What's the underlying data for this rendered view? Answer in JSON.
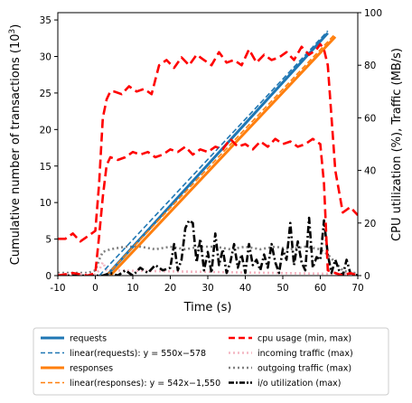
{
  "chart_data": {
    "type": "line",
    "title": "",
    "xlabel": "Time (s)",
    "ylabel": "Cumulative number of transactions (10",
    "ylabel_sup": "3",
    "ylabel_close": ")",
    "y2label": "CPU utilization (%), Traffic (MB/s)",
    "xlim": [
      -10,
      70
    ],
    "ylim": [
      0,
      36
    ],
    "y2lim": [
      0,
      100
    ],
    "xticks": [
      "-10",
      "0",
      "10",
      "20",
      "30",
      "40",
      "50",
      "60",
      "70"
    ],
    "yticks": [
      "0",
      "5",
      "10",
      "15",
      "20",
      "25",
      "30",
      "35"
    ],
    "y2ticks": [
      "0",
      "20",
      "40",
      "60",
      "80",
      "100"
    ],
    "grid": false,
    "legend_position": "below",
    "colors": {
      "requests": "#1f77b4",
      "responses": "#ff7f0e",
      "cpu": "#ff0000",
      "incoming": "#f4b6c2",
      "outgoing": "#808080",
      "io": "#000000"
    },
    "series": [
      {
        "name": "requests",
        "axis": "left",
        "x": [
          3,
          62
        ],
        "y": [
          0,
          33.2
        ]
      },
      {
        "name": "linear(requests): y = 550x−578",
        "axis": "left",
        "x": [
          1.05,
          62
        ],
        "y": [
          0,
          33.5
        ]
      },
      {
        "name": "responses",
        "axis": "left",
        "x": [
          4,
          64
        ],
        "y": [
          0,
          32.7
        ]
      },
      {
        "name": "linear(responses): y = 542x−1,550",
        "axis": "left",
        "x": [
          2.9,
          64
        ],
        "y": [
          0,
          33.1
        ]
      },
      {
        "name": "cpu usage (max)",
        "axis": "right",
        "x": [
          -10,
          -8,
          -6,
          -4,
          -2,
          0,
          1,
          2,
          3,
          4,
          5,
          7,
          9,
          11,
          13,
          15,
          17,
          19,
          21,
          23,
          25,
          27,
          29,
          31,
          33,
          35,
          37,
          39,
          41,
          43,
          45,
          47,
          49,
          51,
          53,
          55,
          57,
          59,
          60,
          61,
          62,
          64,
          66,
          68,
          70
        ],
        "y": [
          14,
          14,
          16,
          13,
          15,
          17,
          35,
          60,
          67,
          70,
          70,
          69,
          72,
          70,
          71,
          69,
          80,
          82,
          79,
          83,
          80,
          84,
          82,
          80,
          85,
          81,
          82,
          80,
          86,
          81,
          84,
          82,
          83,
          85,
          82,
          87,
          84,
          86,
          88,
          86,
          80,
          40,
          24,
          26,
          23
        ]
      },
      {
        "name": "cpu usage (min)",
        "axis": "right",
        "x": [
          -10,
          -6,
          -2,
          0,
          1,
          2,
          3,
          4,
          6,
          8,
          10,
          12,
          14,
          16,
          18,
          20,
          22,
          24,
          26,
          28,
          30,
          32,
          34,
          36,
          38,
          40,
          42,
          44,
          46,
          48,
          50,
          52,
          54,
          56,
          58,
          60,
          61,
          62,
          64,
          66,
          68,
          70
        ],
        "y": [
          0,
          1,
          0,
          1,
          15,
          30,
          42,
          45,
          44,
          45,
          47,
          46,
          47,
          45,
          46,
          48,
          47,
          49,
          46,
          48,
          47,
          49,
          48,
          52,
          49,
          50,
          48,
          51,
          49,
          52,
          50,
          51,
          49,
          50,
          52,
          50,
          35,
          2,
          1,
          0,
          1,
          0
        ]
      },
      {
        "name": "incoming traffic (max)",
        "axis": "right",
        "x": [
          -10,
          0,
          1,
          2,
          3,
          70
        ],
        "y": [
          0.5,
          0.5,
          2,
          5,
          2,
          0.5
        ]
      },
      {
        "name": "outgoing traffic (max)",
        "axis": "right",
        "x": [
          -10,
          -2,
          0,
          1,
          2,
          4,
          8,
          12,
          16,
          20,
          24,
          28,
          32,
          36,
          40,
          44,
          48,
          52,
          56,
          60,
          62,
          64,
          66,
          68,
          70
        ],
        "y": [
          1,
          1,
          2,
          6,
          9,
          10,
          11,
          11,
          10,
          11,
          10,
          11,
          11,
          10,
          11,
          10,
          11,
          10,
          11,
          10,
          8,
          5,
          2,
          1,
          1
        ]
      },
      {
        "name": "i/o utilization (max)",
        "axis": "right",
        "x": [
          -10,
          0,
          2,
          4,
          6,
          8,
          10,
          12,
          14,
          16,
          18,
          20,
          21,
          22,
          23,
          24,
          25,
          26,
          27,
          28,
          29,
          30,
          31,
          32,
          33,
          34,
          35,
          36,
          37,
          38,
          39,
          40,
          41,
          42,
          43,
          44,
          45,
          46,
          47,
          48,
          49,
          50,
          51,
          52,
          53,
          54,
          55,
          56,
          57,
          58,
          59,
          60,
          61,
          62,
          63,
          64,
          65,
          66,
          67,
          68,
          70
        ],
        "y": [
          0,
          0,
          0,
          1,
          0,
          2,
          0,
          3,
          1,
          4,
          2,
          3,
          12,
          2,
          6,
          18,
          21,
          20,
          5,
          14,
          2,
          9,
          1,
          16,
          4,
          10,
          1,
          5,
          12,
          3,
          8,
          1,
          12,
          4,
          6,
          2,
          8,
          3,
          12,
          5,
          1,
          10,
          6,
          20,
          4,
          13,
          5,
          2,
          22,
          3,
          7,
          6,
          21,
          8,
          1,
          6,
          2,
          0,
          6,
          1,
          0
        ]
      }
    ]
  },
  "legend": {
    "left": [
      {
        "key": "requests",
        "label": "requests",
        "style": "solid"
      },
      {
        "key": "lin_req",
        "label": "linear(requests): y = 550x−578",
        "style": "dashed"
      },
      {
        "key": "responses",
        "label": "responses",
        "style": "solid"
      },
      {
        "key": "lin_resp",
        "label": "linear(responses): y = 542x−1,550",
        "style": "dashed"
      }
    ],
    "right": [
      {
        "key": "cpu",
        "label": "cpu usage (min, max)",
        "style": "dashed"
      },
      {
        "key": "incoming",
        "label": "incoming traffic (max)",
        "style": "dotted"
      },
      {
        "key": "outgoing",
        "label": "outgoing traffic (max)",
        "style": "dotted"
      },
      {
        "key": "io",
        "label": "i/o utilization (max)",
        "style": "dashdot"
      }
    ]
  }
}
